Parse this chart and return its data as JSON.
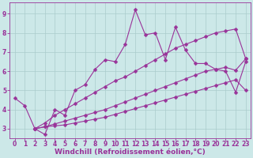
{
  "xlabel": "Windchill (Refroidissement éolien,°C)",
  "bg_color": "#cce8e8",
  "line_color": "#993399",
  "xlim": [
    -0.5,
    23.5
  ],
  "ylim": [
    2.5,
    9.6
  ],
  "xticks": [
    0,
    1,
    2,
    3,
    4,
    5,
    6,
    7,
    8,
    9,
    10,
    11,
    12,
    13,
    14,
    15,
    16,
    17,
    18,
    19,
    20,
    21,
    22,
    23
  ],
  "yticks": [
    3,
    4,
    5,
    6,
    7,
    8,
    9
  ],
  "series": [
    {
      "x": [
        0,
        1,
        2,
        3,
        4,
        5,
        6,
        7,
        8,
        9,
        10,
        11,
        12,
        13,
        14,
        15,
        16,
        17,
        18,
        19,
        20,
        21,
        22,
        23
      ],
      "y": [
        4.6,
        4.2,
        3.0,
        2.7,
        4.0,
        3.7,
        5.0,
        5.3,
        6.1,
        6.6,
        6.5,
        7.4,
        9.2,
        7.9,
        8.0,
        6.6,
        8.3,
        7.1,
        6.4,
        6.4,
        6.1,
        6.0,
        4.9,
        6.5
      ]
    },
    {
      "x": [
        2,
        3,
        4,
        5,
        6,
        7,
        8,
        9,
        10,
        11,
        12,
        13,
        14,
        15,
        16,
        17,
        18,
        19,
        20,
        21,
        22,
        23
      ],
      "y": [
        3.0,
        3.3,
        3.7,
        4.0,
        4.3,
        4.6,
        4.9,
        5.2,
        5.5,
        5.7,
        6.0,
        6.3,
        6.6,
        6.9,
        7.2,
        7.4,
        7.6,
        7.8,
        8.0,
        8.1,
        8.2,
        6.65
      ]
    },
    {
      "x": [
        2,
        3,
        4,
        5,
        6,
        7,
        8,
        9,
        10,
        11,
        12,
        13,
        14,
        15,
        16,
        17,
        18,
        19,
        20,
        21,
        22,
        23
      ],
      "y": [
        3.0,
        3.1,
        3.25,
        3.4,
        3.55,
        3.7,
        3.85,
        4.0,
        4.2,
        4.4,
        4.6,
        4.8,
        5.0,
        5.2,
        5.4,
        5.6,
        5.8,
        6.0,
        6.1,
        6.2,
        6.05,
        6.65
      ]
    },
    {
      "x": [
        2,
        3,
        4,
        5,
        6,
        7,
        8,
        9,
        10,
        11,
        12,
        13,
        14,
        15,
        16,
        17,
        18,
        19,
        20,
        21,
        22,
        23
      ],
      "y": [
        3.0,
        3.1,
        3.15,
        3.2,
        3.3,
        3.4,
        3.5,
        3.6,
        3.75,
        3.9,
        4.05,
        4.2,
        4.35,
        4.5,
        4.65,
        4.8,
        4.95,
        5.1,
        5.25,
        5.4,
        5.55,
        5.0
      ]
    }
  ],
  "grid_color": "#aacccc",
  "marker": "D",
  "markersize": 2.5,
  "linewidth": 0.8,
  "xlabel_fontsize": 6.5,
  "tick_fontsize": 5.5
}
